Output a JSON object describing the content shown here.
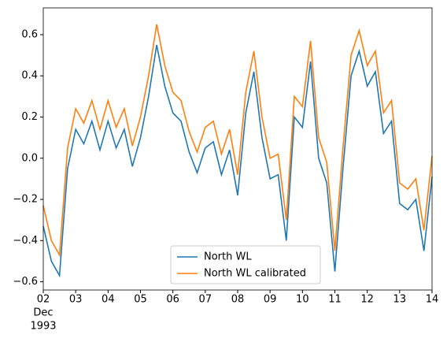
{
  "chart_data": {
    "type": "line",
    "x": [
      2.0,
      2.25,
      2.5,
      2.75,
      3.0,
      3.25,
      3.5,
      3.75,
      4.0,
      4.25,
      4.5,
      4.75,
      5.0,
      5.25,
      5.5,
      5.75,
      6.0,
      6.25,
      6.5,
      6.75,
      7.0,
      7.25,
      7.5,
      7.75,
      8.0,
      8.25,
      8.5,
      8.75,
      9.0,
      9.25,
      9.5,
      9.75,
      10.0,
      10.25,
      10.5,
      10.75,
      11.0,
      11.25,
      11.5,
      11.75,
      12.0,
      12.25,
      12.5,
      12.75,
      13.0,
      13.25,
      13.5,
      13.75,
      14.0
    ],
    "series": [
      {
        "name": "North WL",
        "color": "#1f77b4",
        "values": [
          -0.33,
          -0.5,
          -0.57,
          -0.05,
          0.14,
          0.07,
          0.18,
          0.04,
          0.18,
          0.05,
          0.14,
          -0.04,
          0.1,
          0.3,
          0.55,
          0.35,
          0.22,
          0.18,
          0.03,
          -0.07,
          0.05,
          0.08,
          -0.08,
          0.04,
          -0.18,
          0.22,
          0.42,
          0.1,
          -0.1,
          -0.08,
          -0.4,
          0.2,
          0.15,
          0.47,
          0.0,
          -0.12,
          -0.55,
          -0.05,
          0.4,
          0.52,
          0.35,
          0.42,
          0.12,
          0.18,
          -0.22,
          -0.25,
          -0.2,
          -0.45,
          -0.09
        ]
      },
      {
        "name": "North WL calibrated",
        "color": "#ff7f0e",
        "values": [
          -0.23,
          -0.4,
          -0.47,
          0.05,
          0.24,
          0.17,
          0.28,
          0.14,
          0.28,
          0.15,
          0.24,
          0.06,
          0.2,
          0.4,
          0.65,
          0.45,
          0.32,
          0.28,
          0.13,
          0.03,
          0.15,
          0.18,
          0.02,
          0.14,
          -0.08,
          0.32,
          0.52,
          0.2,
          0.0,
          0.02,
          -0.3,
          0.3,
          0.25,
          0.57,
          0.1,
          -0.02,
          -0.45,
          0.05,
          0.5,
          0.62,
          0.45,
          0.52,
          0.22,
          0.28,
          -0.12,
          -0.15,
          -0.1,
          -0.35,
          0.01
        ]
      }
    ],
    "xlim": [
      2,
      14
    ],
    "xticks": [
      {
        "value": 2,
        "label": "02"
      },
      {
        "value": 3,
        "label": "03"
      },
      {
        "value": 4,
        "label": "04"
      },
      {
        "value": 5,
        "label": "05"
      },
      {
        "value": 6,
        "label": "06"
      },
      {
        "value": 7,
        "label": "07"
      },
      {
        "value": 8,
        "label": "08"
      },
      {
        "value": 9,
        "label": "09"
      },
      {
        "value": 10,
        "label": "10"
      },
      {
        "value": 11,
        "label": "11"
      },
      {
        "value": 12,
        "label": "12"
      },
      {
        "value": 13,
        "label": "13"
      },
      {
        "value": 14,
        "label": "14"
      }
    ],
    "xtick_month": "Dec",
    "xtick_year": "1993",
    "ylim": [
      -0.64,
      0.73
    ],
    "yticks": [
      {
        "value": -0.6,
        "label": "−0.6"
      },
      {
        "value": -0.4,
        "label": "−0.4"
      },
      {
        "value": -0.2,
        "label": "−0.2"
      },
      {
        "value": 0,
        "label": "0.0"
      },
      {
        "value": 0.2,
        "label": "0.2"
      },
      {
        "value": 0.4,
        "label": "0.4"
      },
      {
        "value": 0.6,
        "label": "0.6"
      }
    ],
    "legend": "lower center"
  }
}
